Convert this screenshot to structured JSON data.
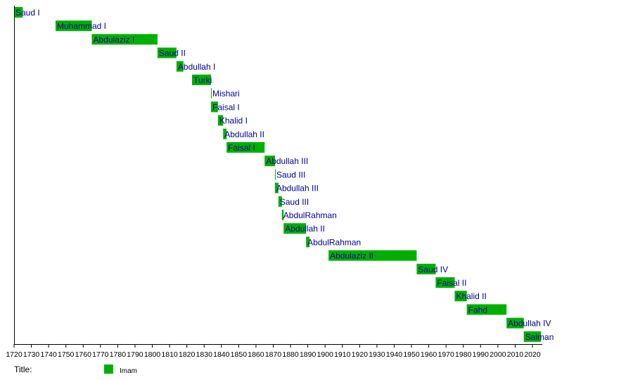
{
  "chart_data": {
    "type": "timeline",
    "title_label": "Title:",
    "xlim": [
      1720,
      2026
    ],
    "ticks": [
      1720,
      1730,
      1740,
      1750,
      1760,
      1770,
      1780,
      1790,
      1800,
      1810,
      1820,
      1830,
      1840,
      1850,
      1860,
      1870,
      1880,
      1890,
      1900,
      1910,
      1920,
      1930,
      1940,
      1950,
      1960,
      1970,
      1980,
      1990,
      2000,
      2010,
      2020
    ],
    "bar_color": "#00b000",
    "label_color": "#0000a0",
    "legend": [
      {
        "name": "Imam",
        "color": "#00b000"
      }
    ],
    "legend_placement": "bottom",
    "bars": [
      {
        "label": "Saud I",
        "start": 1720,
        "end": 1725
      },
      {
        "label": "Muhammad I",
        "start": 1744,
        "end": 1765
      },
      {
        "label": "Abdulaziz I",
        "start": 1765,
        "end": 1803
      },
      {
        "label": "Saud II",
        "start": 1803,
        "end": 1814
      },
      {
        "label": "Abdullah I",
        "start": 1814,
        "end": 1818
      },
      {
        "label": "Turki",
        "start": 1823,
        "end": 1834
      },
      {
        "label": "Mishari",
        "start": 1834,
        "end": 1834.3
      },
      {
        "label": "Faisal I",
        "start": 1834,
        "end": 1838
      },
      {
        "label": "Khalid I",
        "start": 1838,
        "end": 1841
      },
      {
        "label": "Abdullah II",
        "start": 1841,
        "end": 1843
      },
      {
        "label": "Faisal I",
        "start": 1843,
        "end": 1865
      },
      {
        "label": "Abdullah III",
        "start": 1865,
        "end": 1871
      },
      {
        "label": "Saud III",
        "start": 1871,
        "end": 1871.3
      },
      {
        "label": "Abdullah III",
        "start": 1871,
        "end": 1873
      },
      {
        "label": "Saud III",
        "start": 1873,
        "end": 1875
      },
      {
        "label": "AbdulRahman",
        "start": 1875,
        "end": 1876
      },
      {
        "label": "Abdullah II",
        "start": 1876,
        "end": 1889
      },
      {
        "label": "AbdulRahman",
        "start": 1889,
        "end": 1891
      },
      {
        "label": "Abdulaziz II",
        "start": 1902,
        "end": 1953
      },
      {
        "label": "Saud IV",
        "start": 1953,
        "end": 1964
      },
      {
        "label": "Faisal II",
        "start": 1964,
        "end": 1975
      },
      {
        "label": "Khalid II",
        "start": 1975,
        "end": 1982
      },
      {
        "label": "Fahd",
        "start": 1982,
        "end": 2005
      },
      {
        "label": "Abdullah IV",
        "start": 2005,
        "end": 2015
      },
      {
        "label": "Salman",
        "start": 2015,
        "end": 2025
      }
    ]
  }
}
